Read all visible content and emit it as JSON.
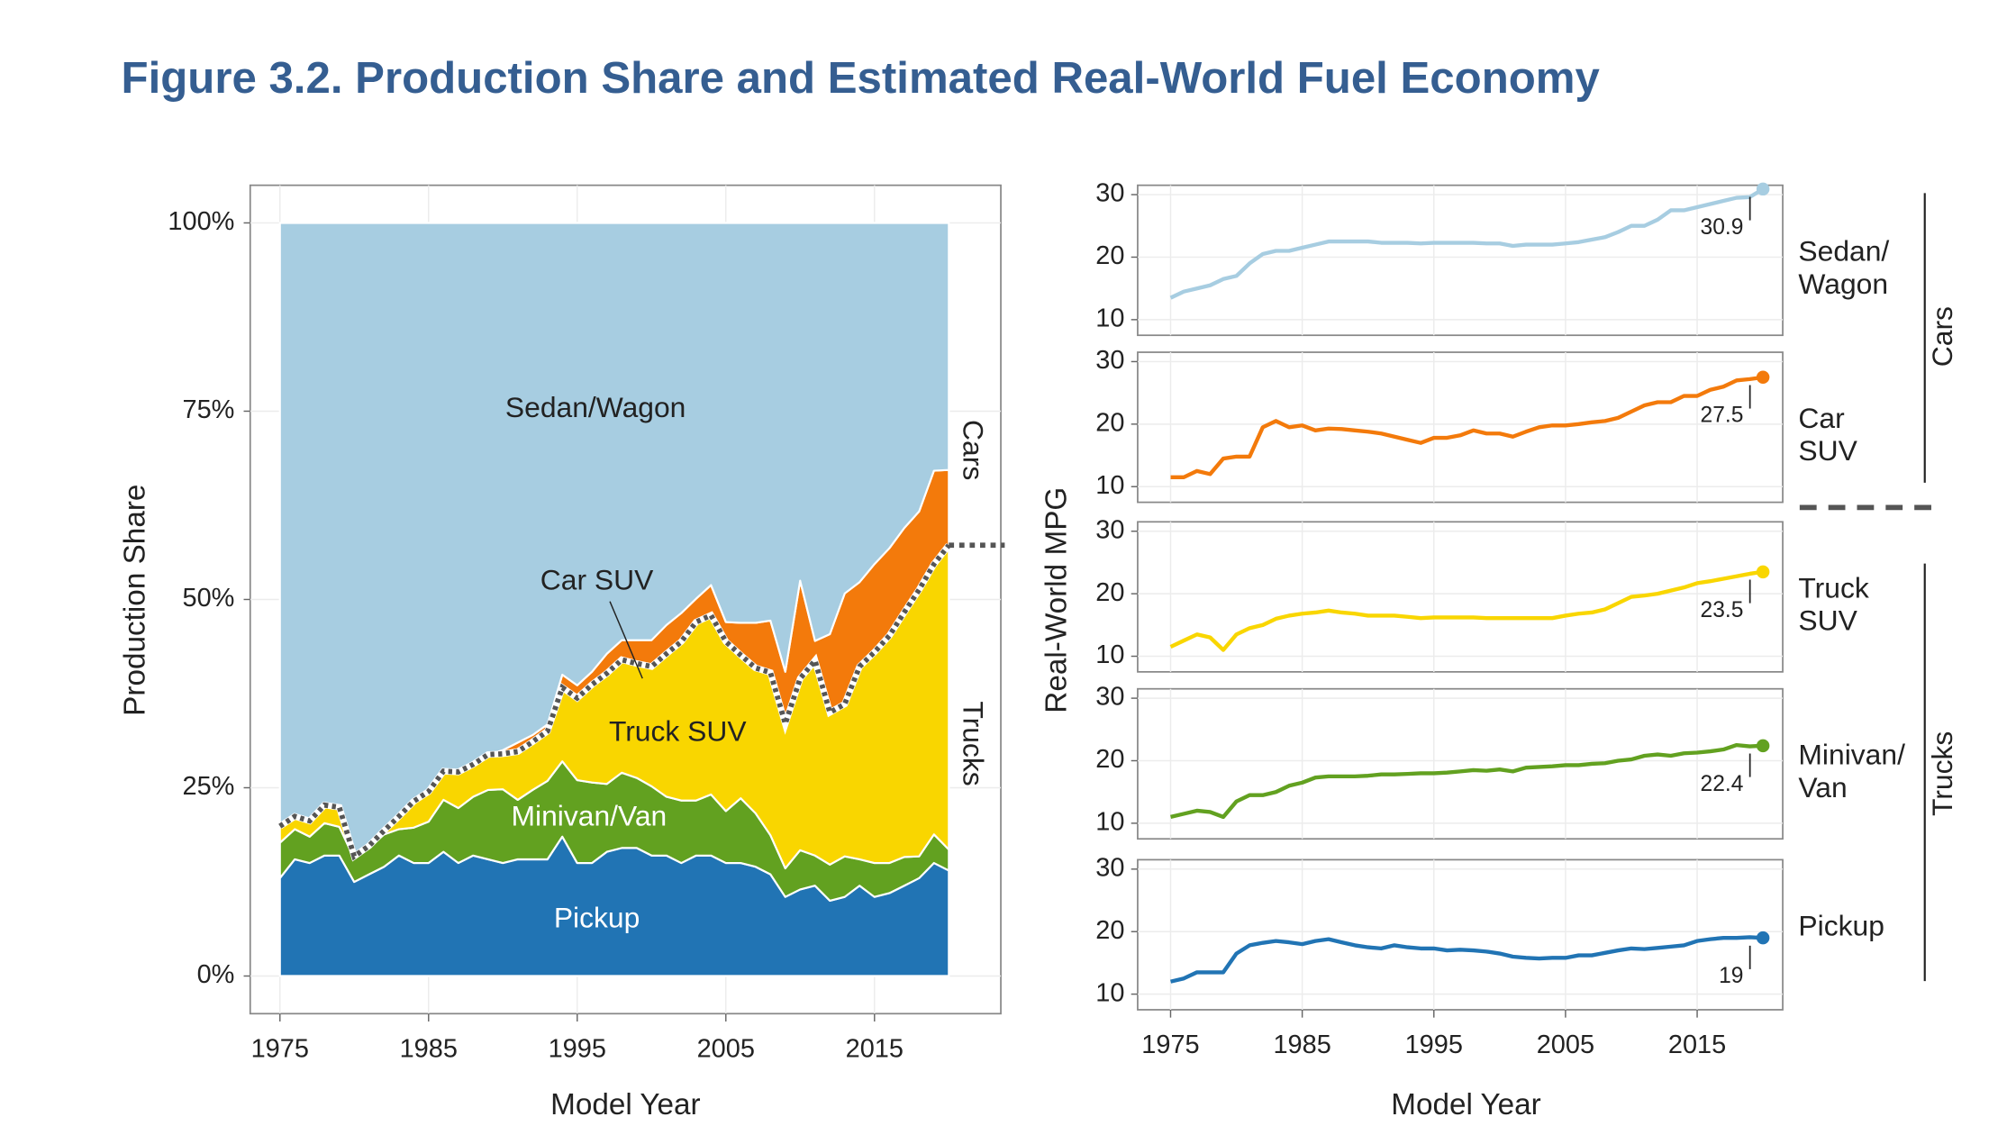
{
  "title": "Figure 3.2. Production Share and Estimated Real-World Fuel Economy",
  "chart_data": [
    {
      "type": "area",
      "stacked": true,
      "ylabel": "Production Share",
      "xlabel": "Model Year",
      "x": [
        1975,
        1976,
        1977,
        1978,
        1979,
        1980,
        1981,
        1982,
        1983,
        1984,
        1985,
        1986,
        1987,
        1988,
        1989,
        1990,
        1991,
        1992,
        1993,
        1994,
        1995,
        1996,
        1997,
        1998,
        1999,
        2000,
        2001,
        2002,
        2003,
        2004,
        2005,
        2006,
        2007,
        2008,
        2009,
        2010,
        2011,
        2012,
        2013,
        2014,
        2015,
        2016,
        2017,
        2018,
        2019,
        2020
      ],
      "series": [
        {
          "name": "Pickup",
          "color": "#2174b4",
          "values": [
            13,
            15.5,
            15,
            16,
            16,
            12.5,
            13.5,
            14.5,
            16,
            15,
            15,
            16.5,
            15,
            16,
            15.5,
            15,
            15.5,
            15.5,
            15.5,
            18.5,
            15,
            15,
            16.5,
            17,
            17,
            16,
            16,
            15,
            16,
            16,
            15,
            15,
            14.5,
            13.5,
            10.5,
            11.5,
            12,
            10,
            10.5,
            12,
            10.5,
            11,
            12,
            13,
            15,
            14
          ]
        },
        {
          "name": "Minivan/Van",
          "color": "#62a120",
          "values": [
            4.7,
            4,
            3.5,
            4.3,
            3.8,
            3.1,
            3.5,
            4.3,
            3.5,
            4.7,
            5.5,
            6.9,
            7.3,
            7.8,
            9.2,
            9.8,
            7.9,
            9.2,
            10.4,
            10,
            11,
            10.7,
            9,
            10,
            9.3,
            9.2,
            7.8,
            8.3,
            7.3,
            8.1,
            6.9,
            8.6,
            7.1,
            5.2,
            3.8,
            5.2,
            4,
            4.8,
            5.4,
            3.5,
            4.5,
            4,
            3.8,
            2.9,
            3.8,
            2.8
          ]
        },
        {
          "name": "Truck SUV",
          "color": "#f9d600",
          "values": [
            2.2,
            1.7,
            2.1,
            2.4,
            2.6,
            0.3,
            0.3,
            0.5,
            1.7,
            3.5,
            4,
            3.8,
            4.8,
            4.3,
            4.7,
            4.7,
            6.4,
            6.4,
            6.6,
            9.8,
            10.9,
            13,
            14.7,
            15,
            15.2,
            15.9,
            19,
            21.1,
            23.7,
            23.8,
            22.5,
            19,
            19.3,
            21.6,
            19.2,
            22.8,
            25.9,
            20.2,
            20.2,
            25.6,
            28,
            30.2,
            32.5,
            35.4,
            35.9,
            40.4
          ]
        },
        {
          "name": "Car SUV",
          "color": "#f37a0b",
          "values": [
            0,
            0,
            0,
            0,
            0,
            0,
            0,
            0,
            0,
            0,
            0,
            0,
            0,
            0,
            0,
            0.5,
            1.2,
            0.9,
            0.9,
            1.7,
            1.7,
            1.7,
            2.6,
            2.6,
            3.1,
            3.5,
            3.8,
            3.8,
            3.1,
            4,
            2.6,
            4.3,
            6,
            6.9,
            6.9,
            13,
            2.6,
            10.4,
            14.7,
            11.2,
            11.7,
            11.6,
            11.2,
            10.4,
            12.4,
            10
          ]
        },
        {
          "name": "Sedan/Wagon",
          "color": "#a7cde1",
          "values": [
            80.1,
            78.8,
            79.4,
            77.3,
            77.6,
            84.1,
            82.7,
            80.7,
            78.8,
            76.8,
            75.5,
            72.8,
            72.9,
            71.9,
            70.6,
            70,
            69,
            68,
            66.6,
            60,
            61.4,
            59.6,
            57.2,
            55.4,
            55.4,
            55.4,
            53.4,
            51.8,
            49.9,
            48.1,
            53,
            53.1,
            53.1,
            52.8,
            59.6,
            47.5,
            55.5,
            54.6,
            49.2,
            47.7,
            45.3,
            43.2,
            40.5,
            38.3,
            32.9,
            32.8
          ]
        }
      ],
      "xlim": [
        1973,
        2023.5
      ],
      "xticks": [
        1975,
        1985,
        1995,
        2005,
        2015
      ],
      "ylim": [
        -5,
        105
      ],
      "yticks": [
        {
          "value": 0,
          "label": "0%"
        },
        {
          "value": 25,
          "label": "25%"
        },
        {
          "value": 50,
          "label": "50%"
        },
        {
          "value": 75,
          "label": "75%"
        },
        {
          "value": 100,
          "label": "100%"
        }
      ],
      "grid": true,
      "annotations": [
        "Cars",
        "Trucks"
      ]
    },
    {
      "type": "line",
      "small_multiples": true,
      "ylabel": "Real-World MPG",
      "xlabel": "Model Year",
      "x": [
        1975,
        1976,
        1977,
        1978,
        1979,
        1980,
        1981,
        1982,
        1983,
        1984,
        1985,
        1986,
        1987,
        1988,
        1989,
        1990,
        1991,
        1992,
        1993,
        1994,
        1995,
        1996,
        1997,
        1998,
        1999,
        2000,
        2001,
        2002,
        2003,
        2004,
        2005,
        2006,
        2007,
        2008,
        2009,
        2010,
        2011,
        2012,
        2013,
        2014,
        2015,
        2016,
        2017,
        2018,
        2019,
        2020
      ],
      "series": [
        {
          "name": "Sedan/\nWagon",
          "color": "#a7cde1",
          "values": [
            13.5,
            14.5,
            15,
            15.5,
            16.5,
            17,
            19,
            20.5,
            21,
            21,
            21.5,
            22,
            22.5,
            22.5,
            22.5,
            22.5,
            22.3,
            22.3,
            22.3,
            22.2,
            22.3,
            22.3,
            22.3,
            22.3,
            22.2,
            22.2,
            21.8,
            22,
            22,
            22,
            22.2,
            22.4,
            22.8,
            23.2,
            24,
            25,
            25,
            26,
            27.5,
            27.5,
            28,
            28.5,
            29,
            29.5,
            29.6,
            30.9
          ]
        },
        {
          "name": "Car\nSUV",
          "color": "#f37a0b",
          "values": [
            11.5,
            11.5,
            12.5,
            12,
            14.5,
            14.8,
            14.8,
            19.5,
            20.5,
            19.5,
            19.8,
            19,
            19.3,
            19.2,
            19,
            18.8,
            18.5,
            18,
            17.5,
            17,
            17.8,
            17.8,
            18.2,
            19,
            18.5,
            18.5,
            18,
            18.8,
            19.5,
            19.8,
            19.8,
            20,
            20.3,
            20.5,
            21,
            22,
            23,
            23.5,
            23.5,
            24.5,
            24.5,
            25.5,
            26,
            27,
            27.2,
            27.5
          ]
        },
        {
          "name": "Truck\nSUV",
          "color": "#f9d600",
          "values": [
            11.5,
            12.5,
            13.5,
            13,
            11,
            13.5,
            14.5,
            15,
            16,
            16.5,
            16.8,
            17,
            17.3,
            17,
            16.8,
            16.5,
            16.5,
            16.5,
            16.3,
            16.1,
            16.2,
            16.2,
            16.2,
            16.2,
            16.1,
            16.1,
            16.1,
            16.1,
            16.1,
            16.1,
            16.5,
            16.8,
            17,
            17.5,
            18.5,
            19.5,
            19.7,
            20,
            20.5,
            21,
            21.7,
            22,
            22.4,
            22.8,
            23.2,
            23.5
          ]
        },
        {
          "name": "Minivan/\nVan",
          "color": "#62a120",
          "values": [
            11,
            11.5,
            12,
            11.8,
            11,
            13.5,
            14.5,
            14.5,
            15,
            16,
            16.5,
            17.3,
            17.5,
            17.5,
            17.5,
            17.6,
            17.8,
            17.8,
            17.9,
            18,
            18,
            18.1,
            18.3,
            18.5,
            18.4,
            18.6,
            18.3,
            18.9,
            19,
            19.1,
            19.3,
            19.3,
            19.5,
            19.6,
            20,
            20.2,
            20.8,
            21,
            20.8,
            21.2,
            21.3,
            21.5,
            21.8,
            22.5,
            22.3,
            22.4
          ]
        },
        {
          "name": "Pickup",
          "color": "#2174b4",
          "values": [
            12,
            12.5,
            13.5,
            13.5,
            13.5,
            16.5,
            17.8,
            18.2,
            18.5,
            18.3,
            18,
            18.5,
            18.8,
            18.3,
            17.8,
            17.5,
            17.3,
            17.8,
            17.5,
            17.3,
            17.3,
            17,
            17.1,
            17,
            16.8,
            16.5,
            16,
            15.8,
            15.7,
            15.8,
            15.8,
            16.2,
            16.2,
            16.6,
            17,
            17.3,
            17.2,
            17.4,
            17.6,
            17.8,
            18.5,
            18.8,
            19,
            19,
            19.1,
            19.0
          ]
        }
      ],
      "xlim": [
        1972.5,
        2021.5
      ],
      "xticks": [
        1975,
        1985,
        1995,
        2005,
        2015
      ],
      "ylim": [
        7.5,
        31.5
      ],
      "yticks": [
        10,
        20,
        30
      ],
      "grid": true,
      "annotations": [
        "Cars",
        "Trucks"
      ]
    }
  ]
}
